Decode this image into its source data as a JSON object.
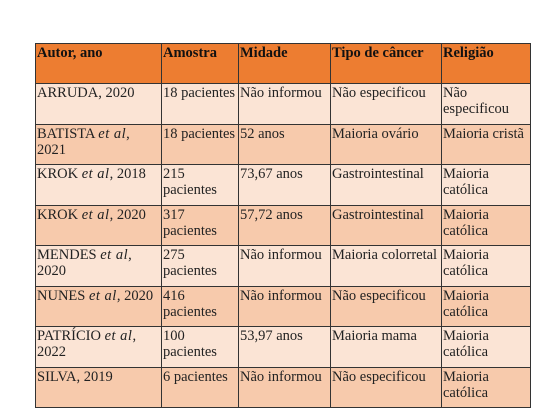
{
  "table": {
    "header": [
      "Autor, ano",
      "Amostra",
      "Midade",
      "Tipo de câncer",
      "Religião"
    ],
    "rows": [
      {
        "author": [
          "ARRUDA, 2020"
        ],
        "cells": [
          "18 pacientes",
          "Não informou",
          "Não especificou",
          "Não especificou"
        ]
      },
      {
        "author": [
          "BATISTA ",
          "et al",
          ", 2021"
        ],
        "cells": [
          "18 pacientes",
          "52 anos",
          "Maioria ovário",
          "Maioria cristã"
        ]
      },
      {
        "author": [
          "KROK ",
          "et al",
          ", 2018"
        ],
        "cells": [
          "215 pacientes",
          "73,67 anos",
          "Gastrointestinal",
          "Maioria católica"
        ]
      },
      {
        "author": [
          "KROK ",
          "et al",
          ", 2020"
        ],
        "cells": [
          "317 pacientes",
          "57,72 anos",
          "Gastrointestinal",
          "Maioria católica"
        ]
      },
      {
        "author": [
          "MENDES ",
          "et al",
          ", 2020"
        ],
        "cells": [
          "275 pacientes",
          "Não informou",
          "Maioria colorretal",
          "Maioria católica"
        ]
      },
      {
        "author": [
          "NUNES ",
          "et al",
          ", 2020"
        ],
        "cells": [
          "416 pacientes",
          "Não informou",
          "Não especificou",
          "Maioria católica"
        ]
      },
      {
        "author": [
          "PATRÍCIO ",
          "et al",
          ", 2022"
        ],
        "cells": [
          "100 pacientes",
          "53,97 anos",
          "Maioria mama",
          "Maioria católica"
        ]
      },
      {
        "author": [
          "SILVA, 2019"
        ],
        "cells": [
          "6 pacientes",
          "Não informou",
          "Não especificou",
          "Maioria católica"
        ]
      }
    ]
  }
}
